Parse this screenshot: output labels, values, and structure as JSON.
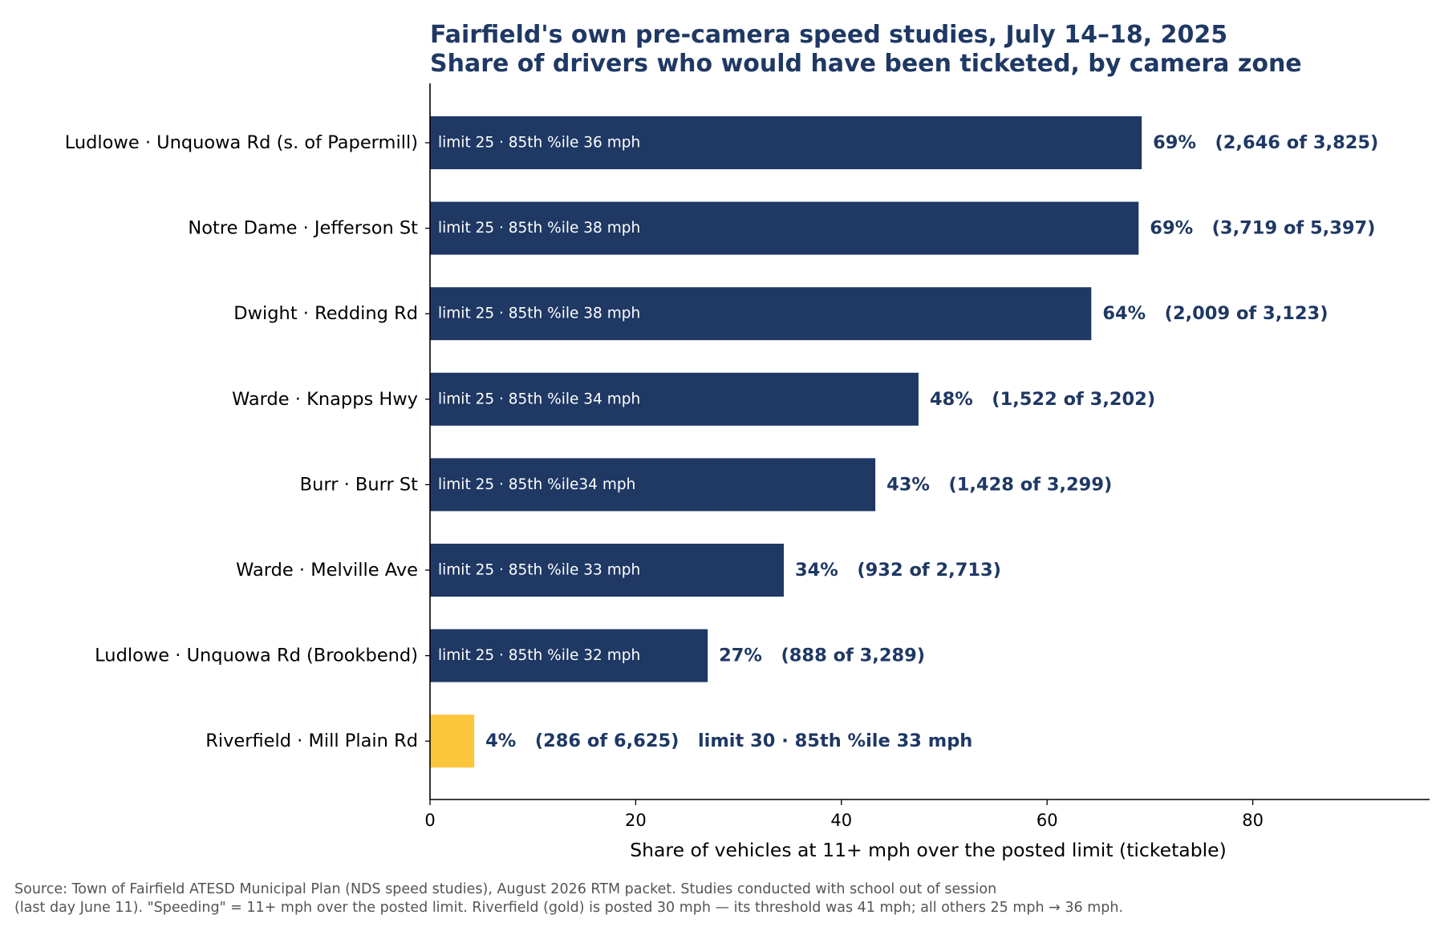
{
  "chart_data": {
    "type": "bar",
    "orientation": "horizontal",
    "title": [
      "Fairfield's own pre-camera speed studies, July 14–18, 2025",
      "Share of drivers who would have been ticketed, by camera zone"
    ],
    "xlabel": "Share of vehicles at 11+ mph over the posted limit (ticketable)",
    "ylabel": "",
    "xlim": [
      0,
      97.5
    ],
    "xticks": [
      0,
      20,
      40,
      60,
      80
    ],
    "grid": false,
    "categories": [
      "Ludlowe · Unquowa Rd (s. of Papermill)",
      "Notre Dame · Jefferson St",
      "Dwight · Redding Rd",
      "Warde · Knapps Hwy",
      "Burr · Burr St",
      "Warde · Melville Ave",
      "Ludlowe · Unquowa Rd (Brookbend)",
      "Riverfield · Mill Plain Rd"
    ],
    "values": [
      69.2,
      68.9,
      64.3,
      47.5,
      43.3,
      34.4,
      27.0,
      4.3
    ],
    "value_labels": [
      "69%   (2,646 of 3,825)",
      "69%   (3,719 of 5,397)",
      "64%   (2,009 of 3,123)",
      "48%   (1,522 of 3,202)",
      "43%   (1,428 of 3,299)",
      "34%   (932 of 2,713)",
      "27%   (888 of 3,289)",
      "4%   (286 of 6,625)   limit 30 · 85th %ile 33 mph"
    ],
    "bar_labels": [
      "limit 25 · 85th %ile 36 mph",
      "limit 25 · 85th %ile 38 mph",
      "limit 25 · 85th %ile 38 mph",
      "limit 25 · 85th %ile 34 mph",
      "limit 25 · 85th %ile34 mph",
      "limit 25 · 85th %ile 33 mph",
      "limit 25 · 85th %ile 32 mph",
      ""
    ],
    "colors": [
      "#1f3864",
      "#1f3864",
      "#1f3864",
      "#1f3864",
      "#1f3864",
      "#1f3864",
      "#1f3864",
      "#fcc63c"
    ]
  },
  "colors": {
    "title": "#1f3864",
    "bar": "#1f3864",
    "highlight": "#fcc63c",
    "value_label": "#1f3864",
    "bar_label": "#ffffff",
    "source": "#555555"
  },
  "source": [
    "Source: Town of Fairfield ATESD Municipal Plan (NDS speed studies), August 2026 RTM packet. Studies conducted with school out of session",
    "(last day June 11). \"Speeding\" = 11+ mph over the posted limit. Riverfield (gold) is posted 30 mph — its threshold was 41 mph; all others 25 mph → 36 mph."
  ]
}
